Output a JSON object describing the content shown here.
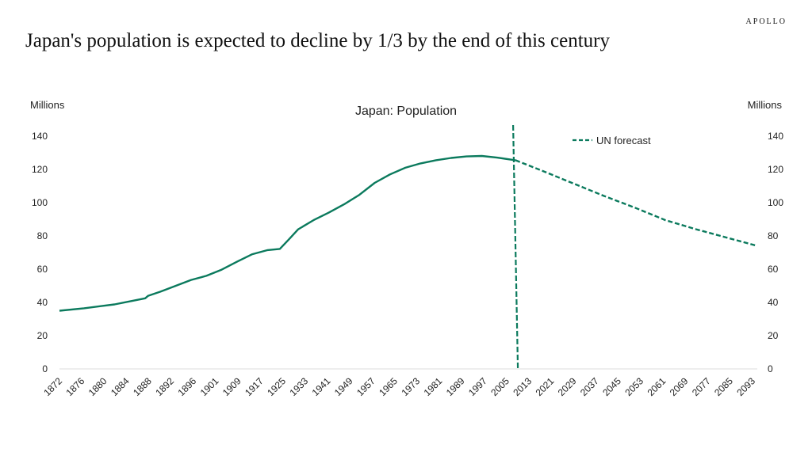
{
  "page": {
    "brand": "APOLLO",
    "headline": "Japan's population is expected to decline by 1/3 by the end of this century"
  },
  "colors": {
    "line": "#0b7a5d",
    "text": "#222222",
    "axis": "#dddddd"
  },
  "chart_data": {
    "type": "line",
    "title": "Japan: Population",
    "ylabel_left": "Millions",
    "ylabel_right": "Millions",
    "ylim": [
      0,
      140
    ],
    "yticks": [
      0,
      20,
      40,
      60,
      80,
      100,
      120,
      140
    ],
    "xlim": [
      1872,
      2100
    ],
    "xtick_labels": [
      "1872",
      "1876",
      "1880",
      "1884",
      "1888",
      "1892",
      "1896",
      "1901",
      "1909",
      "1917",
      "1925",
      "1933",
      "1941",
      "1949",
      "1957",
      "1965",
      "1973",
      "1981",
      "1989",
      "1997",
      "2005",
      "2013",
      "2021",
      "2029",
      "2037",
      "2045",
      "2053",
      "2061",
      "2069",
      "2077",
      "2085",
      "2093"
    ],
    "legend": {
      "label": "UN forecast",
      "placement": "top-center-right"
    },
    "forecast_marker_year": 2021,
    "series": [
      {
        "style": "solid",
        "x": [
          1872,
          1880,
          1890,
          1900,
          1901,
          1905,
          1910,
          1915,
          1920,
          1925,
          1930,
          1935,
          1940,
          1944,
          1947,
          1950,
          1955,
          1960,
          1965,
          1970,
          1975,
          1980,
          1985,
          1990,
          1995,
          2000,
          2005,
          2010,
          2015,
          2021
        ],
        "y": [
          35,
          36.5,
          38.8,
          42.5,
          44,
          46.5,
          50,
          53.5,
          56,
          59.7,
          64.5,
          69,
          71.5,
          72.2,
          78,
          84,
          89.5,
          94,
          99,
          104.7,
          111.9,
          117,
          121,
          123.6,
          125.5,
          126.9,
          127.8,
          128.1,
          127.1,
          125.5
        ]
      },
      {
        "name": "UN forecast",
        "style": "dashed",
        "x": [
          2021,
          2030,
          2040,
          2050,
          2060,
          2070,
          2080,
          2090,
          2100
        ],
        "y": [
          125.5,
          119,
          111.5,
          104,
          97,
          89.5,
          84,
          79,
          74
        ]
      }
    ]
  }
}
